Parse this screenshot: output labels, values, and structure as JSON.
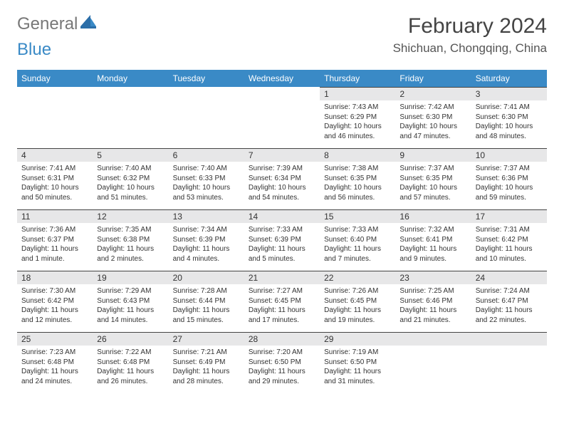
{
  "logo": {
    "part1": "General",
    "part2": "Blue"
  },
  "title": "February 2024",
  "location": "Shichuan, Chongqing, China",
  "colors": {
    "header_bg": "#3a8ac6",
    "header_fg": "#ffffff",
    "daynum_bg": "#e7e7e8",
    "rule": "#444444",
    "text": "#333333",
    "page_bg": "#ffffff"
  },
  "weekdays": [
    "Sunday",
    "Monday",
    "Tuesday",
    "Wednesday",
    "Thursday",
    "Friday",
    "Saturday"
  ],
  "weeks": [
    [
      null,
      null,
      null,
      null,
      {
        "n": "1",
        "sr": "7:43 AM",
        "ss": "6:29 PM",
        "dl": "10 hours and 46 minutes."
      },
      {
        "n": "2",
        "sr": "7:42 AM",
        "ss": "6:30 PM",
        "dl": "10 hours and 47 minutes."
      },
      {
        "n": "3",
        "sr": "7:41 AM",
        "ss": "6:30 PM",
        "dl": "10 hours and 48 minutes."
      }
    ],
    [
      {
        "n": "4",
        "sr": "7:41 AM",
        "ss": "6:31 PM",
        "dl": "10 hours and 50 minutes."
      },
      {
        "n": "5",
        "sr": "7:40 AM",
        "ss": "6:32 PM",
        "dl": "10 hours and 51 minutes."
      },
      {
        "n": "6",
        "sr": "7:40 AM",
        "ss": "6:33 PM",
        "dl": "10 hours and 53 minutes."
      },
      {
        "n": "7",
        "sr": "7:39 AM",
        "ss": "6:34 PM",
        "dl": "10 hours and 54 minutes."
      },
      {
        "n": "8",
        "sr": "7:38 AM",
        "ss": "6:35 PM",
        "dl": "10 hours and 56 minutes."
      },
      {
        "n": "9",
        "sr": "7:37 AM",
        "ss": "6:35 PM",
        "dl": "10 hours and 57 minutes."
      },
      {
        "n": "10",
        "sr": "7:37 AM",
        "ss": "6:36 PM",
        "dl": "10 hours and 59 minutes."
      }
    ],
    [
      {
        "n": "11",
        "sr": "7:36 AM",
        "ss": "6:37 PM",
        "dl": "11 hours and 1 minute."
      },
      {
        "n": "12",
        "sr": "7:35 AM",
        "ss": "6:38 PM",
        "dl": "11 hours and 2 minutes."
      },
      {
        "n": "13",
        "sr": "7:34 AM",
        "ss": "6:39 PM",
        "dl": "11 hours and 4 minutes."
      },
      {
        "n": "14",
        "sr": "7:33 AM",
        "ss": "6:39 PM",
        "dl": "11 hours and 5 minutes."
      },
      {
        "n": "15",
        "sr": "7:33 AM",
        "ss": "6:40 PM",
        "dl": "11 hours and 7 minutes."
      },
      {
        "n": "16",
        "sr": "7:32 AM",
        "ss": "6:41 PM",
        "dl": "11 hours and 9 minutes."
      },
      {
        "n": "17",
        "sr": "7:31 AM",
        "ss": "6:42 PM",
        "dl": "11 hours and 10 minutes."
      }
    ],
    [
      {
        "n": "18",
        "sr": "7:30 AM",
        "ss": "6:42 PM",
        "dl": "11 hours and 12 minutes."
      },
      {
        "n": "19",
        "sr": "7:29 AM",
        "ss": "6:43 PM",
        "dl": "11 hours and 14 minutes."
      },
      {
        "n": "20",
        "sr": "7:28 AM",
        "ss": "6:44 PM",
        "dl": "11 hours and 15 minutes."
      },
      {
        "n": "21",
        "sr": "7:27 AM",
        "ss": "6:45 PM",
        "dl": "11 hours and 17 minutes."
      },
      {
        "n": "22",
        "sr": "7:26 AM",
        "ss": "6:45 PM",
        "dl": "11 hours and 19 minutes."
      },
      {
        "n": "23",
        "sr": "7:25 AM",
        "ss": "6:46 PM",
        "dl": "11 hours and 21 minutes."
      },
      {
        "n": "24",
        "sr": "7:24 AM",
        "ss": "6:47 PM",
        "dl": "11 hours and 22 minutes."
      }
    ],
    [
      {
        "n": "25",
        "sr": "7:23 AM",
        "ss": "6:48 PM",
        "dl": "11 hours and 24 minutes."
      },
      {
        "n": "26",
        "sr": "7:22 AM",
        "ss": "6:48 PM",
        "dl": "11 hours and 26 minutes."
      },
      {
        "n": "27",
        "sr": "7:21 AM",
        "ss": "6:49 PM",
        "dl": "11 hours and 28 minutes."
      },
      {
        "n": "28",
        "sr": "7:20 AM",
        "ss": "6:50 PM",
        "dl": "11 hours and 29 minutes."
      },
      {
        "n": "29",
        "sr": "7:19 AM",
        "ss": "6:50 PM",
        "dl": "11 hours and 31 minutes."
      },
      null,
      null
    ]
  ],
  "labels": {
    "sunrise": "Sunrise: ",
    "sunset": "Sunset: ",
    "daylight": "Daylight: "
  }
}
